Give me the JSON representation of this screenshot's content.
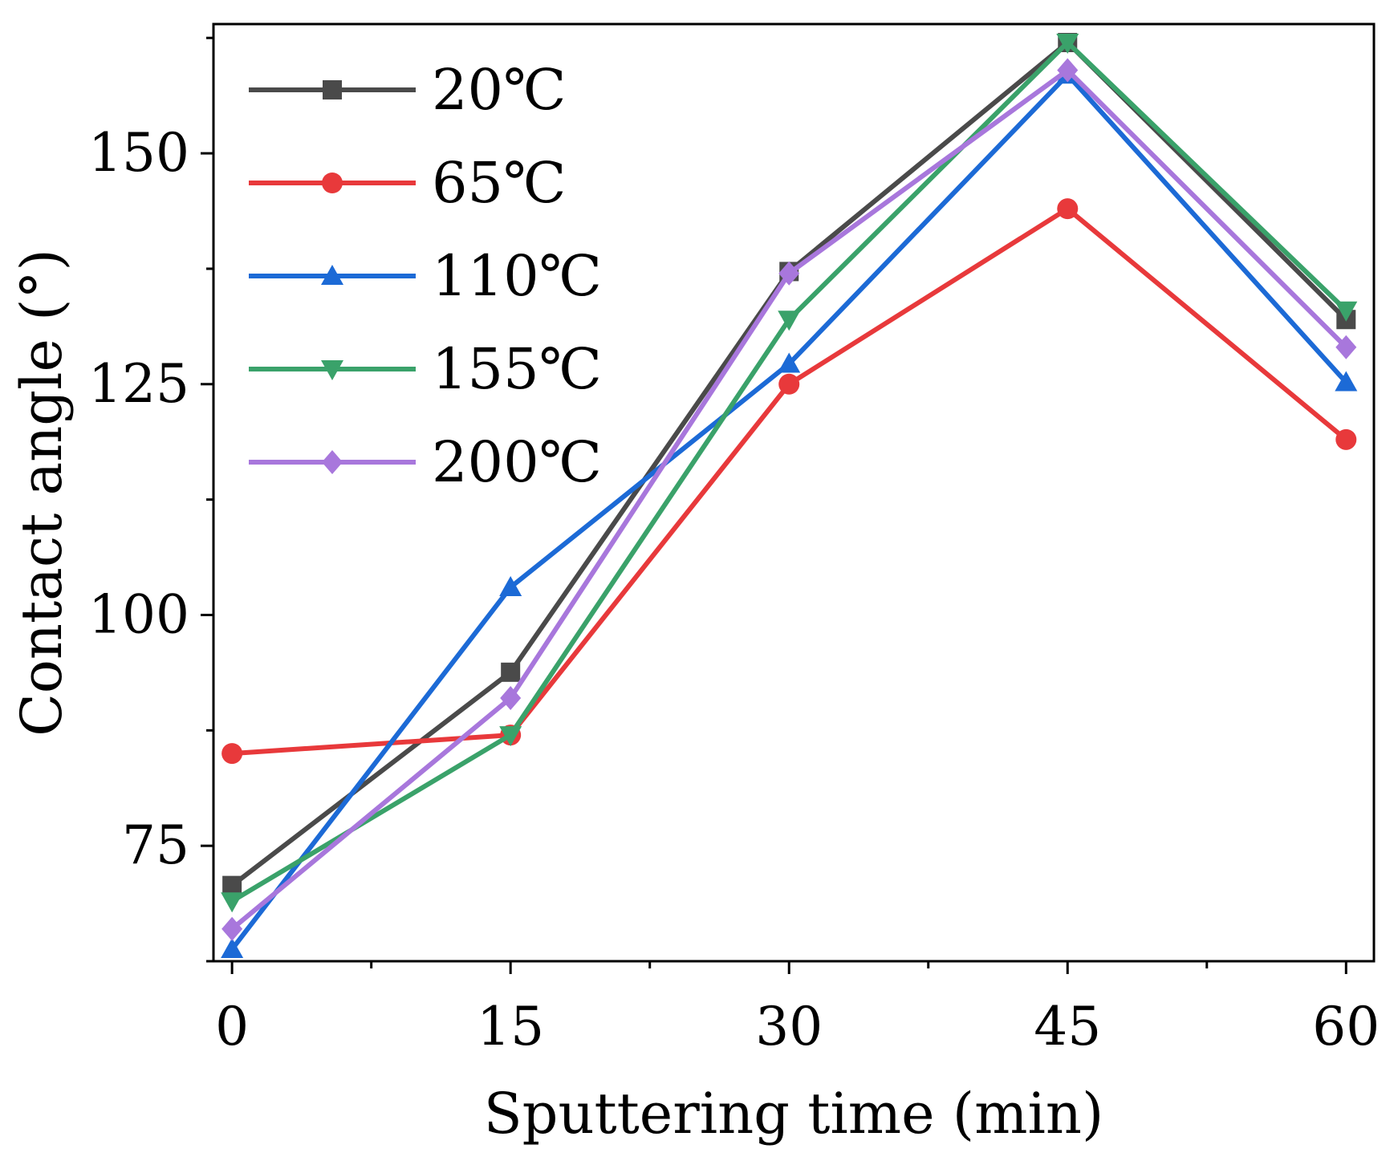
{
  "chart_data": {
    "type": "line",
    "title": "",
    "xlabel": "Sputtering time (min)",
    "ylabel": "Contact angle (°)",
    "x": [
      0,
      15,
      30,
      45,
      60
    ],
    "xlim": [
      -1,
      61.5
    ],
    "ylim": [
      62.5,
      164
    ],
    "xticks": [
      0,
      15,
      30,
      45,
      60
    ],
    "xtick_labels": [
      "0",
      "15",
      "30",
      "45",
      "60"
    ],
    "x_minor_ticks": [
      7.5,
      22.5,
      37.5,
      52.5
    ],
    "yticks": [
      75,
      100,
      125,
      150
    ],
    "ytick_labels": [
      "75",
      "100",
      "125",
      "150"
    ],
    "y_minor_ticks": [
      62.5,
      87.5,
      112.5,
      137.5,
      162.5
    ],
    "grid": false,
    "legend_position": "top-left",
    "series": [
      {
        "name": "20℃",
        "color": "#4a4a4a",
        "marker": "square",
        "values": [
          70.7,
          93.8,
          137.2,
          162,
          132
        ]
      },
      {
        "name": "65℃",
        "color": "#e8393b",
        "marker": "circle",
        "values": [
          85,
          87,
          125,
          144,
          119
        ]
      },
      {
        "name": "110℃",
        "color": "#1c6ad6",
        "marker": "triangle-up",
        "values": [
          63.8,
          103,
          127.2,
          158.5,
          125.2
        ]
      },
      {
        "name": "155℃",
        "color": "#3aa26a",
        "marker": "triangle-down",
        "values": [
          69,
          87,
          132,
          162,
          133
        ]
      },
      {
        "name": "200℃",
        "color": "#a877dc",
        "marker": "diamond",
        "values": [
          66,
          91,
          137,
          159,
          129
        ]
      }
    ]
  }
}
